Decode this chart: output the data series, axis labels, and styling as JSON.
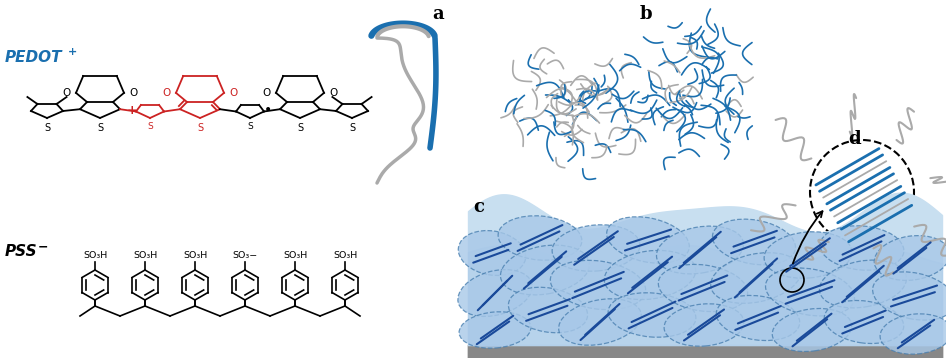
{
  "fig_width": 9.46,
  "fig_height": 3.58,
  "dpi": 100,
  "bg_color": "#ffffff",
  "pedot_color": "#1a6faf",
  "red_color": "#cc2222",
  "blue_color": "#1a6faf",
  "gray_color": "#aaaaaa",
  "film_bg": "#c8dff0",
  "film_blue_light": "#a8c8e8",
  "film_blue_mid": "#7aaed4",
  "substrate_color": "#888888",
  "so3h_labels": [
    "SO₃H",
    "SO₃H",
    "SO₃H",
    "SO₃−",
    "SO₃H",
    "SO₃H"
  ],
  "panel_labels": [
    "a",
    "b",
    "c",
    "d"
  ],
  "panel_fontsize": 13
}
